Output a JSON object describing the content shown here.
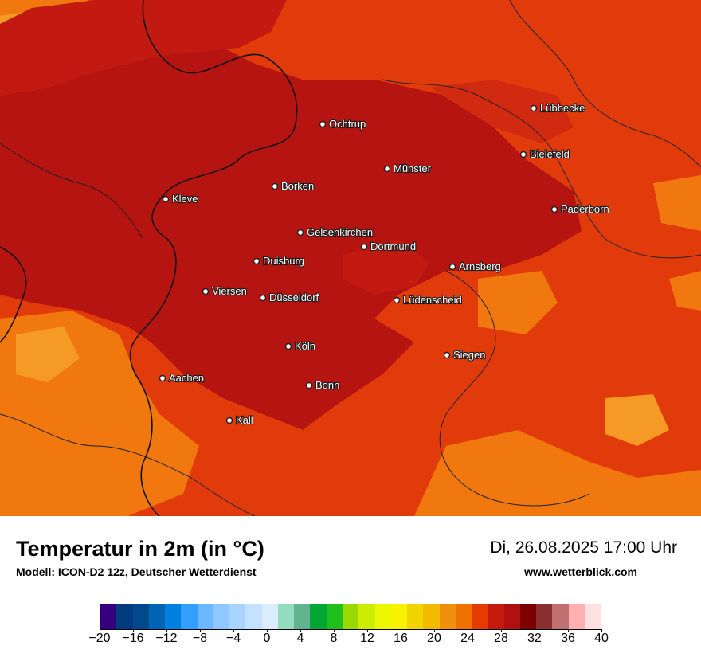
{
  "map": {
    "cities": [
      {
        "name": "Lübbecke"
      },
      {
        "name": "Ochtrup"
      },
      {
        "name": "Bielefeld"
      },
      {
        "name": "Münster"
      },
      {
        "name": "Borken"
      },
      {
        "name": "Kleve"
      },
      {
        "name": "Paderborn"
      },
      {
        "name": "Gelsenkirchen"
      },
      {
        "name": "Dortmund"
      },
      {
        "name": "Duisburg"
      },
      {
        "name": "Arnsberg"
      },
      {
        "name": "Viersen"
      },
      {
        "name": "Düsseldorf"
      },
      {
        "name": "Lüdenscheid"
      },
      {
        "name": "Köln"
      },
      {
        "name": "Siegen"
      },
      {
        "name": "Aachen"
      },
      {
        "name": "Bonn"
      },
      {
        "name": "Kall"
      }
    ]
  },
  "footer": {
    "title": "Temperatur in 2m (in °C)",
    "subtitle": "Modell: ICON-D2 12z, Deutscher Wetterdienst",
    "datetime": "Di, 26.08.2025 17:00 Uhr",
    "website": "www.wetterblick.com"
  },
  "legend": {
    "colors": [
      "#35007f",
      "#003c7d",
      "#00498c",
      "#0063b4",
      "#0080e0",
      "#33a0ff",
      "#6bb8ff",
      "#8fc8ff",
      "#a8d4ff",
      "#c4e1ff",
      "#dbecff",
      "#94dcbe",
      "#62b491",
      "#03a535",
      "#20c01b",
      "#9ad900",
      "#cdec00",
      "#ecf700",
      "#f7f200",
      "#f2d400",
      "#f2bb00",
      "#f0900c",
      "#f07000",
      "#e53b00",
      "#c41a0f",
      "#b01010",
      "#7d0000",
      "#8b3030",
      "#c07070",
      "#ffb0b0",
      "#ffe0e0"
    ],
    "ticks": [
      "−20",
      "−16",
      "−12",
      "−8",
      "−4",
      "0",
      "4",
      "8",
      "12",
      "16",
      "20",
      "24",
      "28",
      "32",
      "36",
      "40"
    ]
  },
  "colors": {
    "base_hot": "#b61410",
    "mid_hot": "#e23b0b",
    "warm": "#ee5b0b",
    "orange": "#f0780e",
    "light_orange": "#f59a24"
  }
}
